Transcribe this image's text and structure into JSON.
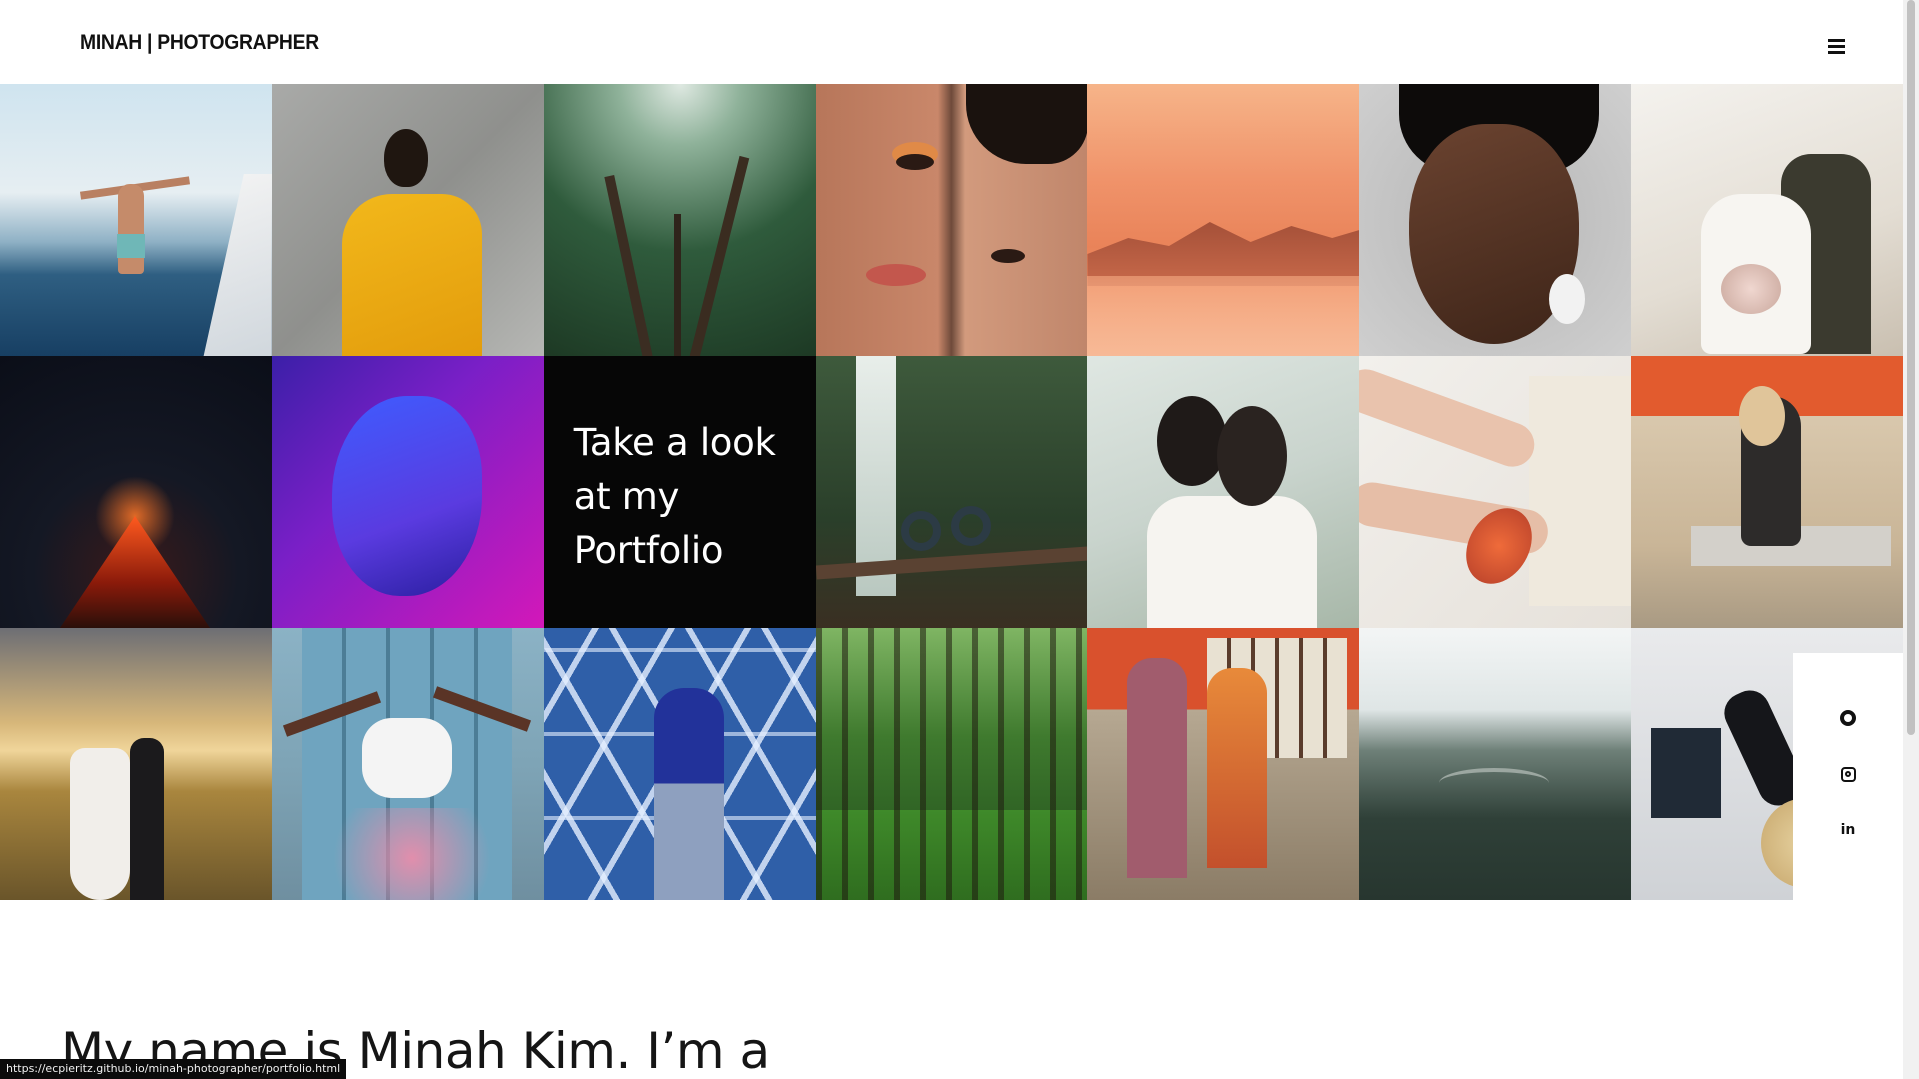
{
  "header": {
    "logo": "MINAH | PHOTOGRAPHER",
    "menu_icon": "hamburger-menu-icon"
  },
  "gallery": {
    "cta_text": "Take a look at my Portfolio"
  },
  "social": {
    "icons": [
      "github-icon",
      "instagram-icon",
      "linkedin-icon"
    ],
    "linkedin_label": "in"
  },
  "intro": {
    "text": "My name is Minah Kim. I’m a"
  },
  "status_bar": {
    "url": "https://ecpieritz.github.io/minah-photographer/portfolio.html"
  },
  "colors": {
    "text": "#111111",
    "cta_background": "#060606",
    "page_background": "#ffffff"
  }
}
